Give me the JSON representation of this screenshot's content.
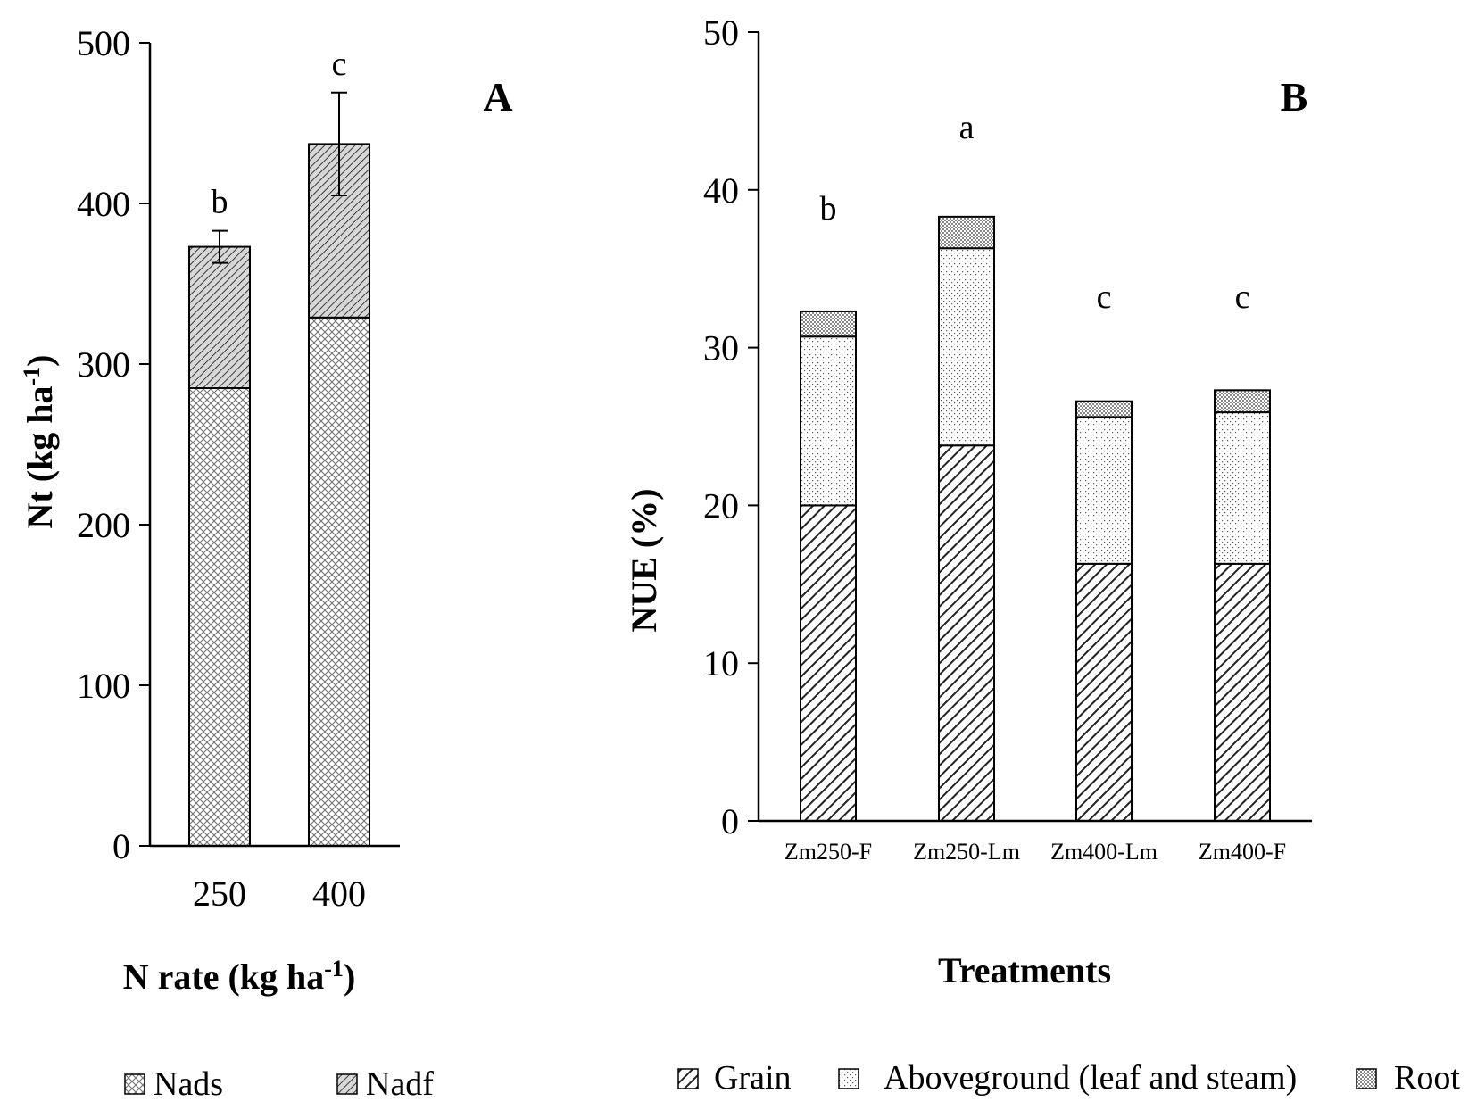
{
  "chart_data": [
    {
      "panel": "A",
      "type": "bar",
      "stacked": true,
      "categories": [
        "250",
        "400"
      ],
      "series": [
        {
          "name": "Nads",
          "values": [
            285,
            329
          ]
        },
        {
          "name": "Nadf",
          "values": [
            88,
            108
          ]
        }
      ],
      "error_bars": [
        10,
        32
      ],
      "significance_letters": [
        "b",
        "c"
      ],
      "ylim": [
        0,
        500
      ],
      "yticks": [
        "0",
        "100",
        "200",
        "300",
        "400",
        "500"
      ],
      "ylabel_main": "Nt (kg ha",
      "ylabel_sup": "-1",
      "ylabel_end": ")",
      "xlabel_main": "N rate (kg ha",
      "xlabel_sup": "-1",
      "xlabel_end": ")",
      "legend_position": "bottom"
    },
    {
      "panel": "B",
      "type": "bar",
      "stacked": true,
      "categories": [
        "Zm250-F",
        "Zm250-Lm",
        "Zm400-Lm",
        "Zm400-F"
      ],
      "series": [
        {
          "name": "Grain",
          "values": [
            20.0,
            23.8,
            16.3,
            16.3
          ]
        },
        {
          "name": "Aboveground (leaf and steam)",
          "values": [
            10.7,
            12.5,
            9.3,
            9.6
          ]
        },
        {
          "name": "Root",
          "values": [
            1.6,
            2.0,
            1.0,
            1.4
          ]
        }
      ],
      "significance_letters": [
        "b",
        "a",
        "c",
        "c"
      ],
      "ylim": [
        0,
        50
      ],
      "yticks": [
        "0",
        "10",
        "20",
        "30",
        "40",
        "50"
      ],
      "ylabel": "NUE (%)",
      "xlabel": "Treatments",
      "legend_position": "bottom"
    }
  ],
  "panel_labels": {
    "a": "A",
    "b": "B"
  }
}
